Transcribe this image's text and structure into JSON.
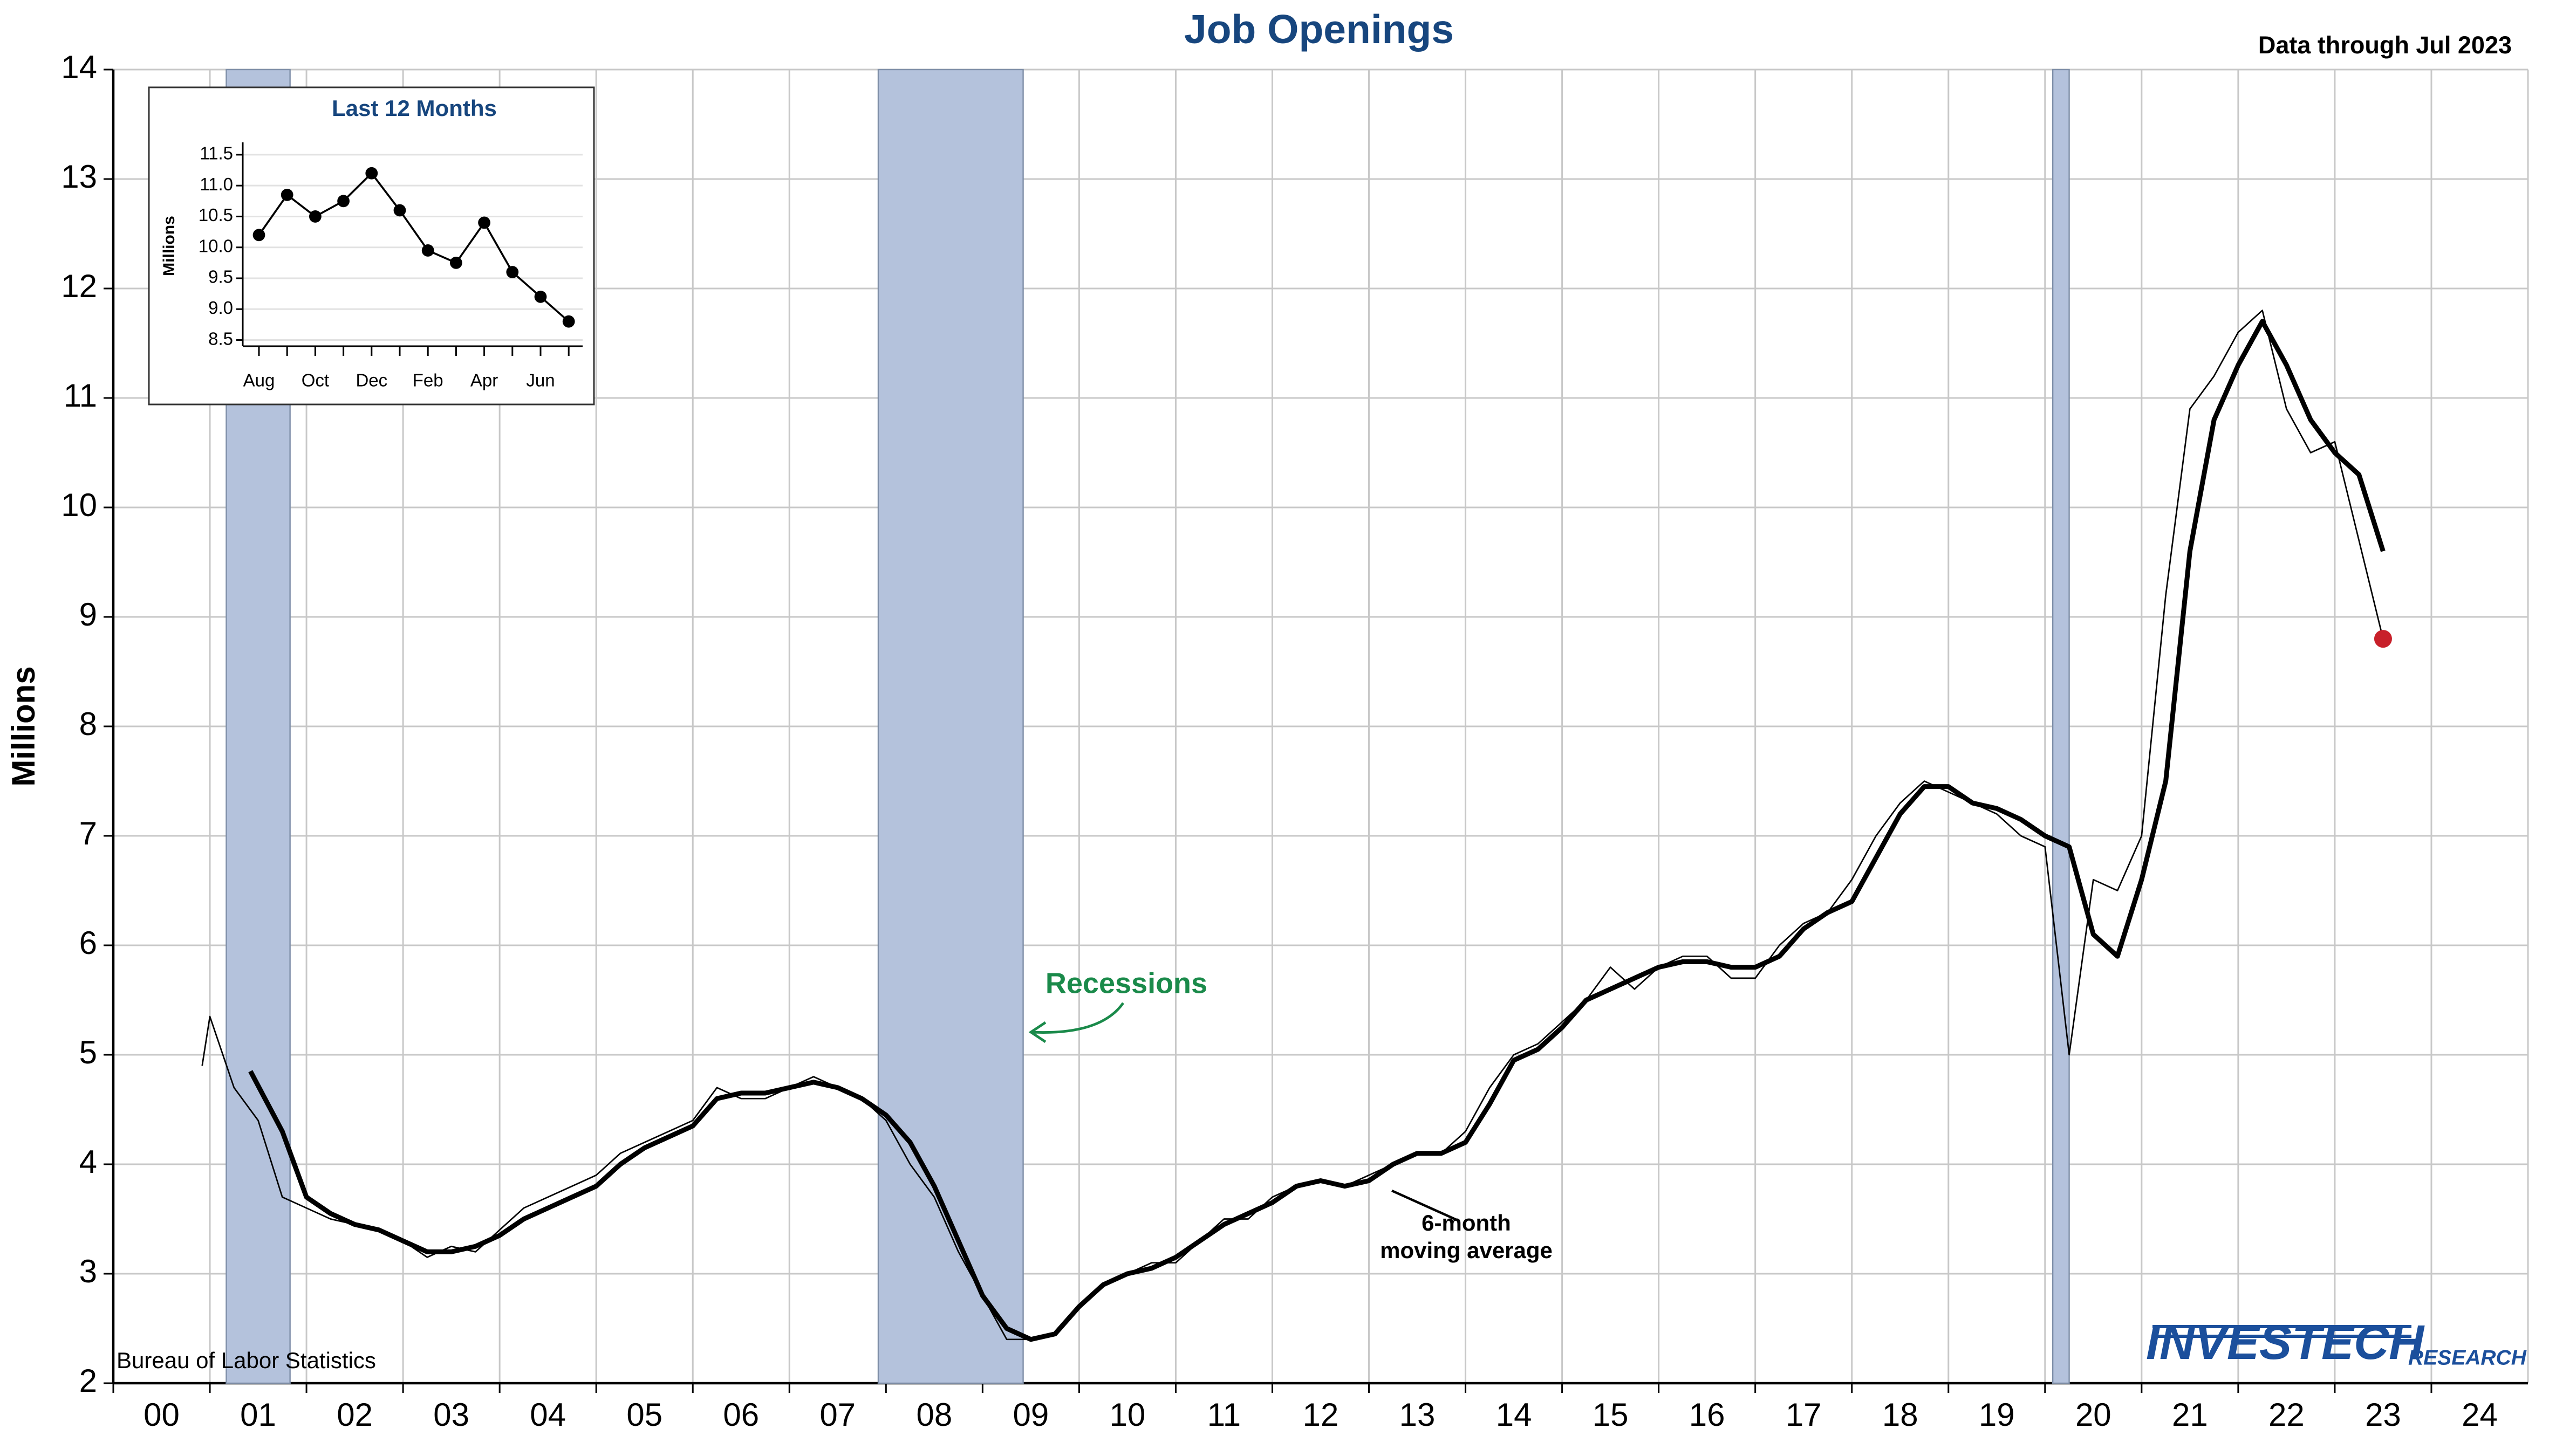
{
  "chart_data": [
    {
      "type": "line",
      "title": "Job Openings",
      "subtitle": "Data through Jul 2023",
      "y_label": "Millions",
      "source": "Bureau of Labor Statistics",
      "logo": [
        "INVESTECH",
        "RESEARCH"
      ],
      "xlim": [
        2000,
        2025
      ],
      "ylim": [
        2,
        14
      ],
      "yticks": [
        2,
        3,
        4,
        5,
        6,
        7,
        8,
        9,
        10,
        11,
        12,
        13,
        14
      ],
      "xticks": [
        {
          "value": 2000,
          "label": "00"
        },
        {
          "value": 2001,
          "label": "01"
        },
        {
          "value": 2002,
          "label": "02"
        },
        {
          "value": 2003,
          "label": "03"
        },
        {
          "value": 2004,
          "label": "04"
        },
        {
          "value": 2005,
          "label": "05"
        },
        {
          "value": 2006,
          "label": "06"
        },
        {
          "value": 2007,
          "label": "07"
        },
        {
          "value": 2008,
          "label": "08"
        },
        {
          "value": 2009,
          "label": "09"
        },
        {
          "value": 2010,
          "label": "10"
        },
        {
          "value": 2011,
          "label": "11"
        },
        {
          "value": 2012,
          "label": "12"
        },
        {
          "value": 2013,
          "label": "13"
        },
        {
          "value": 2014,
          "label": "14"
        },
        {
          "value": 2015,
          "label": "15"
        },
        {
          "value": 2016,
          "label": "16"
        },
        {
          "value": 2017,
          "label": "17"
        },
        {
          "value": 2018,
          "label": "18"
        },
        {
          "value": 2019,
          "label": "19"
        },
        {
          "value": 2020,
          "label": "20"
        },
        {
          "value": 2021,
          "label": "21"
        },
        {
          "value": 2022,
          "label": "22"
        },
        {
          "value": 2023,
          "label": "23"
        },
        {
          "value": 2024,
          "label": "24"
        }
      ],
      "grid": true,
      "recession_color": "#b4c2dc",
      "recession_label": "Recessions",
      "recession_label_color": "#1a8a4a",
      "recessions": [
        [
          2001.17,
          2001.83
        ],
        [
          2007.92,
          2009.42
        ],
        [
          2020.08,
          2020.25
        ]
      ],
      "ma_label": [
        "6-month",
        "moving average"
      ],
      "last_point_color": "#c8202a",
      "series": [
        {
          "name": "Job openings",
          "color": "#000000",
          "x": [
            2000.92,
            2001.0,
            2001.25,
            2001.5,
            2001.75,
            2002.0,
            2002.25,
            2002.5,
            2002.75,
            2003.0,
            2003.25,
            2003.5,
            2003.75,
            2004.0,
            2004.25,
            2004.5,
            2004.75,
            2005.0,
            2005.25,
            2005.5,
            2005.75,
            2006.0,
            2006.25,
            2006.5,
            2006.75,
            2007.0,
            2007.25,
            2007.5,
            2007.75,
            2008.0,
            2008.25,
            2008.5,
            2008.75,
            2009.0,
            2009.25,
            2009.5,
            2009.75,
            2010.0,
            2010.25,
            2010.5,
            2010.75,
            2011.0,
            2011.25,
            2011.5,
            2011.75,
            2012.0,
            2012.25,
            2012.5,
            2012.75,
            2013.0,
            2013.25,
            2013.5,
            2013.75,
            2014.0,
            2014.25,
            2014.5,
            2014.75,
            2015.0,
            2015.25,
            2015.5,
            2015.75,
            2016.0,
            2016.25,
            2016.5,
            2016.75,
            2017.0,
            2017.25,
            2017.5,
            2017.75,
            2018.0,
            2018.25,
            2018.5,
            2018.75,
            2019.0,
            2019.25,
            2019.5,
            2019.75,
            2020.0,
            2020.25,
            2020.5,
            2020.75,
            2021.0,
            2021.25,
            2021.5,
            2021.75,
            2022.0,
            2022.25,
            2022.5,
            2022.75,
            2023.0,
            2023.25,
            2023.5
          ],
          "values": [
            4.9,
            5.35,
            4.7,
            4.4,
            3.7,
            3.6,
            3.5,
            3.45,
            3.4,
            3.3,
            3.15,
            3.25,
            3.2,
            3.4,
            3.6,
            3.7,
            3.8,
            3.9,
            4.1,
            4.2,
            4.3,
            4.4,
            4.7,
            4.6,
            4.6,
            4.7,
            4.8,
            4.7,
            4.6,
            4.4,
            4.0,
            3.7,
            3.2,
            2.8,
            2.4,
            2.4,
            2.45,
            2.7,
            2.9,
            3.0,
            3.1,
            3.1,
            3.3,
            3.5,
            3.5,
            3.7,
            3.8,
            3.85,
            3.8,
            3.9,
            4.0,
            4.1,
            4.1,
            4.3,
            4.7,
            5.0,
            5.1,
            5.3,
            5.5,
            5.8,
            5.6,
            5.8,
            5.9,
            5.9,
            5.7,
            5.7,
            6.0,
            6.2,
            6.3,
            6.6,
            7.0,
            7.3,
            7.5,
            7.4,
            7.3,
            7.2,
            7.0,
            6.9,
            5.0,
            6.6,
            6.5,
            7.0,
            9.2,
            10.9,
            11.2,
            11.6,
            11.8,
            10.9,
            10.5,
            10.6,
            9.7,
            8.8
          ]
        },
        {
          "name": "6-month moving average",
          "color": "#000000",
          "x": [
            2001.42,
            2001.75,
            2002.0,
            2002.25,
            2002.5,
            2002.75,
            2003.0,
            2003.25,
            2003.5,
            2003.75,
            2004.0,
            2004.25,
            2004.5,
            2004.75,
            2005.0,
            2005.25,
            2005.5,
            2005.75,
            2006.0,
            2006.25,
            2006.5,
            2006.75,
            2007.0,
            2007.25,
            2007.5,
            2007.75,
            2008.0,
            2008.25,
            2008.5,
            2008.75,
            2009.0,
            2009.25,
            2009.5,
            2009.75,
            2010.0,
            2010.25,
            2010.5,
            2010.75,
            2011.0,
            2011.25,
            2011.5,
            2011.75,
            2012.0,
            2012.25,
            2012.5,
            2012.75,
            2013.0,
            2013.25,
            2013.5,
            2013.75,
            2014.0,
            2014.25,
            2014.5,
            2014.75,
            2015.0,
            2015.25,
            2015.5,
            2015.75,
            2016.0,
            2016.25,
            2016.5,
            2016.75,
            2017.0,
            2017.25,
            2017.5,
            2017.75,
            2018.0,
            2018.25,
            2018.5,
            2018.75,
            2019.0,
            2019.25,
            2019.5,
            2019.75,
            2020.0,
            2020.25,
            2020.5,
            2020.75,
            2021.0,
            2021.25,
            2021.5,
            2021.75,
            2022.0,
            2022.25,
            2022.5,
            2022.75,
            2023.0,
            2023.25,
            2023.5
          ],
          "values": [
            4.85,
            4.3,
            3.7,
            3.55,
            3.45,
            3.4,
            3.3,
            3.2,
            3.2,
            3.25,
            3.35,
            3.5,
            3.6,
            3.7,
            3.8,
            4.0,
            4.15,
            4.25,
            4.35,
            4.6,
            4.65,
            4.65,
            4.7,
            4.75,
            4.7,
            4.6,
            4.45,
            4.2,
            3.8,
            3.3,
            2.8,
            2.5,
            2.4,
            2.45,
            2.7,
            2.9,
            3.0,
            3.05,
            3.15,
            3.3,
            3.45,
            3.55,
            3.65,
            3.8,
            3.85,
            3.8,
            3.85,
            4.0,
            4.1,
            4.1,
            4.2,
            4.55,
            4.95,
            5.05,
            5.25,
            5.5,
            5.6,
            5.7,
            5.8,
            5.85,
            5.85,
            5.8,
            5.8,
            5.9,
            6.15,
            6.3,
            6.4,
            6.8,
            7.2,
            7.45,
            7.45,
            7.3,
            7.25,
            7.15,
            7.0,
            6.9,
            6.1,
            5.9,
            6.6,
            7.5,
            9.6,
            10.8,
            11.3,
            11.7,
            11.3,
            10.8,
            10.5,
            10.3,
            9.6
          ]
        }
      ]
    },
    {
      "type": "line",
      "title": "Last 12 Months",
      "y_label": "Millions",
      "title_color": "#17467e",
      "categories": [
        "Aug",
        null,
        "Oct",
        null,
        "Dec",
        null,
        "Feb",
        null,
        "Apr",
        null,
        "Jun",
        null
      ],
      "values": [
        10.2,
        10.85,
        10.5,
        10.75,
        11.2,
        10.6,
        9.95,
        9.75,
        10.4,
        9.6,
        9.2,
        8.8
      ],
      "color": "#000000",
      "ylim": [
        8.4,
        11.7
      ],
      "yticks": [
        {
          "value": 8.5,
          "label": "8.5"
        },
        {
          "value": 9,
          "label": "9.0"
        },
        {
          "value": 9.5,
          "label": "9.5"
        },
        {
          "value": 10,
          "label": "10.0"
        },
        {
          "value": 10.5,
          "label": "10.5"
        },
        {
          "value": 11,
          "label": "11.0"
        },
        {
          "value": 11.5,
          "label": "11.5"
        }
      ],
      "grid": true
    }
  ]
}
